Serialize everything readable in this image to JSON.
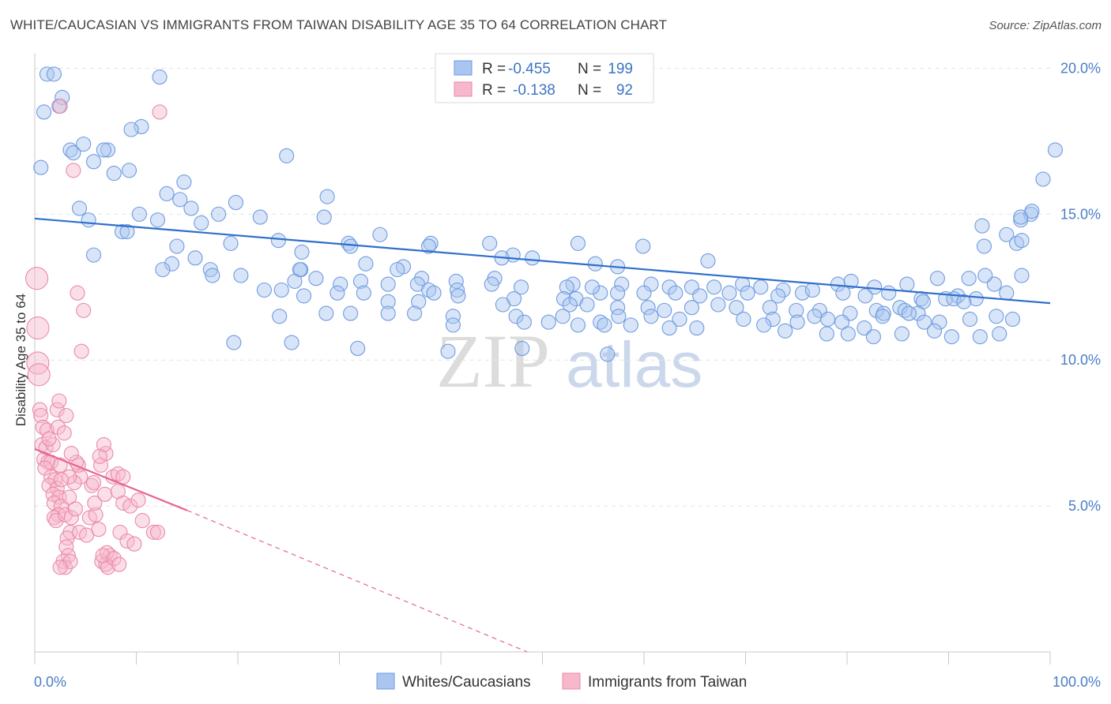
{
  "header": {
    "title": "WHITE/CAUCASIAN VS IMMIGRANTS FROM TAIWAN DISABILITY AGE 35 TO 64 CORRELATION CHART",
    "source": "Source: ZipAtlas.com"
  },
  "watermark": {
    "zip": "ZIP",
    "atlas": "atlas"
  },
  "legend": {
    "r_label": "R =",
    "n_label": "N =",
    "items": [
      {
        "r": "-0.455",
        "n": "199",
        "color": "#a9c5f0",
        "edge": "#6f9be0"
      },
      {
        "r": "-0.138",
        "n": "92",
        "color": "#f7b8cb",
        "edge": "#ea8aa8"
      }
    ]
  },
  "bottom_legend": [
    "Whites/Caucasians",
    "Immigrants from Taiwan"
  ],
  "chart_data": {
    "type": "scatter",
    "ylabel": "Disability Age 35 to 64",
    "xlabel": "",
    "xlim": [
      0,
      100
    ],
    "ylim": [
      0,
      20.5
    ],
    "x_tick_labels": [
      "0.0%",
      "100.0%"
    ],
    "y_ticks": [
      5,
      10,
      15,
      20
    ],
    "y_tick_labels": [
      "5.0%",
      "10.0%",
      "15.0%",
      "20.0%"
    ],
    "grid": true,
    "legend_position": "top-center",
    "series": [
      {
        "name": "Whites/Caucasians",
        "color": "#6f9be0",
        "fill": "#a9c5f0",
        "r": -0.455,
        "n": 199,
        "trend": {
          "x": [
            0,
            100
          ],
          "y": [
            14.85,
            11.95
          ],
          "color": "#2f6fcc"
        },
        "points": [
          [
            1.2,
            19.8
          ],
          [
            1.9,
            19.8
          ],
          [
            12.3,
            19.7
          ],
          [
            2.7,
            19.0
          ],
          [
            2.4,
            18.7
          ],
          [
            0.9,
            18.5
          ],
          [
            10.5,
            18.0
          ],
          [
            9.5,
            17.9
          ],
          [
            3.5,
            17.2
          ],
          [
            3.8,
            17.1
          ],
          [
            7.2,
            17.2
          ],
          [
            6.8,
            17.2
          ],
          [
            4.8,
            17.4
          ],
          [
            24.8,
            17.0
          ],
          [
            5.8,
            16.8
          ],
          [
            0.6,
            16.6
          ],
          [
            9.3,
            16.5
          ],
          [
            7.8,
            16.4
          ],
          [
            14.7,
            16.1
          ],
          [
            13.0,
            15.7
          ],
          [
            14.3,
            15.5
          ],
          [
            28.8,
            15.6
          ],
          [
            19.8,
            15.4
          ],
          [
            4.4,
            15.2
          ],
          [
            15.4,
            15.2
          ],
          [
            10.3,
            15.0
          ],
          [
            18.1,
            15.0
          ],
          [
            22.2,
            14.9
          ],
          [
            28.5,
            14.9
          ],
          [
            5.3,
            14.8
          ],
          [
            12.1,
            14.8
          ],
          [
            16.4,
            14.7
          ],
          [
            8.6,
            14.4
          ],
          [
            9.1,
            14.4
          ],
          [
            34.0,
            14.3
          ],
          [
            24.0,
            14.1
          ],
          [
            19.3,
            14.0
          ],
          [
            30.9,
            14.0
          ],
          [
            39.0,
            14.0
          ],
          [
            31.1,
            13.9
          ],
          [
            44.8,
            14.0
          ],
          [
            53.5,
            14.0
          ],
          [
            14.0,
            13.9
          ],
          [
            38.8,
            13.9
          ],
          [
            59.9,
            13.9
          ],
          [
            26.3,
            13.7
          ],
          [
            47.1,
            13.6
          ],
          [
            5.8,
            13.6
          ],
          [
            15.8,
            13.5
          ],
          [
            46.0,
            13.5
          ],
          [
            49.0,
            13.5
          ],
          [
            66.3,
            13.4
          ],
          [
            13.5,
            13.3
          ],
          [
            32.6,
            13.3
          ],
          [
            55.2,
            13.3
          ],
          [
            57.4,
            13.2
          ],
          [
            36.3,
            13.2
          ],
          [
            26.2,
            13.1
          ],
          [
            17.3,
            13.1
          ],
          [
            12.6,
            13.1
          ],
          [
            26.1,
            13.1
          ],
          [
            35.7,
            13.1
          ],
          [
            20.3,
            12.9
          ],
          [
            27.7,
            12.8
          ],
          [
            17.5,
            12.9
          ],
          [
            38.1,
            12.8
          ],
          [
            45.3,
            12.8
          ],
          [
            32.1,
            12.7
          ],
          [
            25.6,
            12.7
          ],
          [
            41.5,
            12.7
          ],
          [
            30.1,
            12.6
          ],
          [
            34.8,
            12.6
          ],
          [
            37.7,
            12.6
          ],
          [
            45.0,
            12.6
          ],
          [
            53.0,
            12.6
          ],
          [
            57.8,
            12.6
          ],
          [
            60.7,
            12.6
          ],
          [
            69.7,
            12.6
          ],
          [
            62.5,
            12.5
          ],
          [
            64.7,
            12.5
          ],
          [
            66.9,
            12.5
          ],
          [
            71.5,
            12.5
          ],
          [
            73.7,
            12.4
          ],
          [
            79.1,
            12.6
          ],
          [
            80.4,
            12.7
          ],
          [
            82.7,
            12.5
          ],
          [
            85.9,
            12.6
          ],
          [
            88.9,
            12.8
          ],
          [
            92.0,
            12.8
          ],
          [
            94.5,
            12.6
          ],
          [
            93.6,
            12.9
          ],
          [
            97.2,
            12.9
          ],
          [
            22.6,
            12.4
          ],
          [
            24.3,
            12.4
          ],
          [
            38.8,
            12.4
          ],
          [
            41.6,
            12.4
          ],
          [
            47.9,
            12.5
          ],
          [
            52.4,
            12.5
          ],
          [
            55.7,
            12.3
          ],
          [
            54.9,
            12.5
          ],
          [
            26.5,
            12.2
          ],
          [
            29.8,
            12.3
          ],
          [
            32.4,
            12.3
          ],
          [
            39.3,
            12.3
          ],
          [
            41.7,
            12.2
          ],
          [
            47.2,
            12.1
          ],
          [
            52.1,
            12.1
          ],
          [
            53.3,
            12.1
          ],
          [
            57.4,
            12.3
          ],
          [
            60.0,
            12.3
          ],
          [
            63.1,
            12.3
          ],
          [
            65.5,
            12.2
          ],
          [
            68.4,
            12.3
          ],
          [
            70.2,
            12.3
          ],
          [
            73.2,
            12.2
          ],
          [
            75.6,
            12.3
          ],
          [
            76.6,
            12.4
          ],
          [
            79.6,
            12.3
          ],
          [
            81.8,
            12.2
          ],
          [
            84.1,
            12.3
          ],
          [
            87.3,
            12.1
          ],
          [
            89.7,
            12.1
          ],
          [
            90.9,
            12.2
          ],
          [
            92.7,
            12.1
          ],
          [
            95.7,
            12.3
          ],
          [
            34.8,
            12.0
          ],
          [
            37.8,
            12.0
          ],
          [
            46.1,
            11.9
          ],
          [
            52.7,
            11.9
          ],
          [
            54.4,
            11.9
          ],
          [
            57.4,
            11.8
          ],
          [
            60.4,
            11.8
          ],
          [
            62.0,
            11.7
          ],
          [
            64.7,
            11.8
          ],
          [
            67.3,
            11.9
          ],
          [
            69.1,
            11.8
          ],
          [
            72.4,
            11.8
          ],
          [
            75.0,
            11.7
          ],
          [
            77.3,
            11.7
          ],
          [
            80.3,
            11.6
          ],
          [
            82.9,
            11.7
          ],
          [
            85.2,
            11.8
          ],
          [
            87.5,
            12.0
          ],
          [
            90.5,
            12.1
          ],
          [
            91.5,
            12.0
          ],
          [
            83.6,
            11.6
          ],
          [
            85.7,
            11.7
          ],
          [
            87.0,
            11.6
          ],
          [
            28.7,
            11.6
          ],
          [
            24.1,
            11.5
          ],
          [
            31.1,
            11.6
          ],
          [
            34.8,
            11.6
          ],
          [
            37.4,
            11.6
          ],
          [
            41.2,
            11.5
          ],
          [
            47.4,
            11.5
          ],
          [
            52.0,
            11.5
          ],
          [
            55.7,
            11.3
          ],
          [
            57.5,
            11.5
          ],
          [
            60.7,
            11.5
          ],
          [
            63.5,
            11.4
          ],
          [
            69.8,
            11.4
          ],
          [
            72.7,
            11.4
          ],
          [
            75.1,
            11.3
          ],
          [
            76.8,
            11.5
          ],
          [
            78.1,
            11.4
          ],
          [
            79.5,
            11.3
          ],
          [
            81.7,
            11.1
          ],
          [
            83.5,
            11.5
          ],
          [
            86.1,
            11.6
          ],
          [
            87.6,
            11.3
          ],
          [
            89.1,
            11.3
          ],
          [
            92.1,
            11.4
          ],
          [
            94.7,
            11.5
          ],
          [
            96.3,
            11.4
          ],
          [
            41.2,
            11.2
          ],
          [
            48.2,
            11.3
          ],
          [
            50.6,
            11.3
          ],
          [
            53.5,
            11.2
          ],
          [
            56.1,
            11.2
          ],
          [
            58.7,
            11.2
          ],
          [
            62.5,
            11.1
          ],
          [
            65.2,
            11.1
          ],
          [
            71.8,
            11.2
          ],
          [
            73.9,
            11.0
          ],
          [
            78.0,
            10.9
          ],
          [
            80.1,
            10.9
          ],
          [
            82.6,
            10.8
          ],
          [
            85.4,
            10.9
          ],
          [
            88.6,
            11.0
          ],
          [
            90.3,
            10.8
          ],
          [
            93.1,
            10.8
          ],
          [
            95.0,
            10.9
          ],
          [
            19.6,
            10.6
          ],
          [
            25.3,
            10.6
          ],
          [
            31.8,
            10.4
          ],
          [
            40.7,
            10.3
          ],
          [
            48.0,
            10.4
          ],
          [
            56.4,
            10.2
          ],
          [
            97.1,
            14.8
          ],
          [
            98.1,
            15.0
          ],
          [
            99.3,
            16.2
          ],
          [
            100.5,
            17.2
          ],
          [
            93.3,
            14.6
          ],
          [
            95.7,
            14.3
          ],
          [
            97.1,
            14.9
          ],
          [
            98.2,
            15.1
          ],
          [
            93.5,
            13.9
          ],
          [
            96.7,
            14.0
          ],
          [
            97.2,
            14.1
          ]
        ]
      },
      {
        "name": "Immigrants from Taiwan",
        "color": "#ea8aa8",
        "fill": "#f7b8cb",
        "r": -0.138,
        "n": 92,
        "trend": {
          "x": [
            0,
            15
          ],
          "y": [
            6.95,
            4.85
          ],
          "dash_to_x": 48.5,
          "dash_to_y": 0.0,
          "color": "#e8658f"
        },
        "points": [
          [
            0.2,
            12.8
          ],
          [
            0.3,
            11.1
          ],
          [
            0.3,
            9.9
          ],
          [
            0.4,
            9.5
          ],
          [
            0.5,
            8.3
          ],
          [
            0.6,
            8.1
          ],
          [
            0.8,
            7.7
          ],
          [
            1.2,
            7.6
          ],
          [
            0.7,
            7.1
          ],
          [
            1.1,
            7.0
          ],
          [
            0.9,
            6.6
          ],
          [
            1.3,
            6.5
          ],
          [
            1.6,
            6.5
          ],
          [
            1.0,
            6.3
          ],
          [
            1.6,
            6.0
          ],
          [
            2.0,
            5.9
          ],
          [
            1.4,
            5.7
          ],
          [
            2.2,
            5.6
          ],
          [
            1.8,
            5.4
          ],
          [
            2.4,
            5.3
          ],
          [
            1.9,
            5.1
          ],
          [
            2.6,
            5.0
          ],
          [
            2.3,
            4.7
          ],
          [
            1.9,
            4.6
          ],
          [
            2.1,
            4.5
          ],
          [
            3.0,
            4.7
          ],
          [
            3.6,
            4.6
          ],
          [
            3.5,
            4.1
          ],
          [
            3.2,
            3.9
          ],
          [
            3.1,
            3.6
          ],
          [
            3.3,
            3.3
          ],
          [
            2.8,
            3.1
          ],
          [
            3.0,
            2.9
          ],
          [
            3.5,
            3.1
          ],
          [
            2.5,
            2.9
          ],
          [
            4.4,
            4.1
          ],
          [
            5.1,
            4.0
          ],
          [
            5.4,
            4.6
          ],
          [
            6.0,
            4.7
          ],
          [
            6.3,
            4.2
          ],
          [
            7.4,
            3.3
          ],
          [
            6.6,
            3.1
          ],
          [
            7.1,
            3.4
          ],
          [
            7.0,
            3.0
          ],
          [
            7.2,
            2.9
          ],
          [
            6.7,
            3.3
          ],
          [
            7.8,
            3.2
          ],
          [
            8.3,
            3.0
          ],
          [
            5.9,
            5.1
          ],
          [
            6.9,
            5.4
          ],
          [
            8.2,
            5.5
          ],
          [
            8.7,
            5.1
          ],
          [
            9.4,
            5.0
          ],
          [
            7.7,
            6.0
          ],
          [
            8.2,
            6.1
          ],
          [
            8.7,
            6.0
          ],
          [
            6.5,
            6.4
          ],
          [
            7.0,
            6.8
          ],
          [
            6.8,
            7.1
          ],
          [
            5.6,
            5.7
          ],
          [
            4.5,
            6.0
          ],
          [
            4.3,
            6.4
          ],
          [
            3.9,
            5.8
          ],
          [
            3.4,
            6.0
          ],
          [
            3.4,
            5.3
          ],
          [
            4.0,
            4.9
          ],
          [
            2.6,
            5.9
          ],
          [
            2.5,
            6.4
          ],
          [
            1.8,
            7.1
          ],
          [
            1.4,
            7.3
          ],
          [
            2.3,
            7.7
          ],
          [
            2.9,
            7.5
          ],
          [
            2.2,
            8.3
          ],
          [
            2.4,
            8.6
          ],
          [
            3.1,
            8.1
          ],
          [
            4.6,
            10.3
          ],
          [
            4.2,
            12.3
          ],
          [
            4.8,
            11.7
          ],
          [
            3.8,
            16.5
          ],
          [
            2.5,
            18.7
          ],
          [
            12.3,
            18.5
          ],
          [
            8.4,
            4.1
          ],
          [
            11.7,
            4.1
          ],
          [
            12.1,
            4.1
          ],
          [
            9.1,
            3.8
          ],
          [
            9.8,
            3.7
          ],
          [
            10.6,
            4.5
          ],
          [
            10.2,
            5.2
          ],
          [
            5.8,
            5.8
          ],
          [
            4.1,
            6.5
          ],
          [
            3.6,
            6.8
          ],
          [
            6.4,
            6.7
          ]
        ]
      }
    ]
  }
}
